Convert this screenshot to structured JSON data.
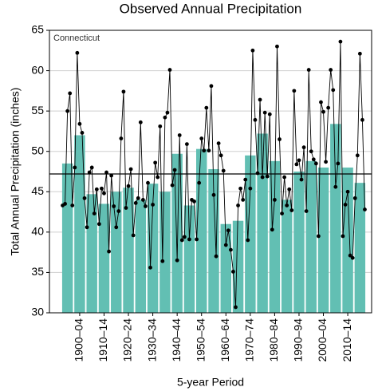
{
  "chart_data": {
    "type": "bar",
    "title": "Observed Annual Precipitation",
    "annotation": "Connecticut",
    "xlabel": "5-year Period",
    "ylabel": "Total Annual Precipitation (inches)",
    "categories": [
      null,
      "1900–04",
      null,
      "1910–14",
      null,
      "1920–24",
      null,
      "1930–34",
      null,
      "1940–44",
      null,
      "1950–54",
      null,
      "1960–64",
      null,
      "1970–74",
      null,
      "1980–84",
      null,
      "1990–94",
      null,
      "2000–04",
      null,
      "2010–14",
      null
    ],
    "series": [
      {
        "color": "#62bfb3",
        "values": [
          48.5,
          52,
          44.7,
          43.5,
          45,
          45.5,
          44,
          46,
          45,
          49.7,
          43.3,
          50.3,
          47.8,
          41,
          41.4,
          49.5,
          52.2,
          48.8,
          44,
          47.5,
          48.8,
          48,
          53.4,
          48,
          46.1
        ]
      }
    ],
    "annual": {
      "color": "#000000",
      "x": [
        1895,
        1896,
        1897,
        1898,
        1899,
        1900,
        1901,
        1902,
        1903,
        1904,
        1905,
        1906,
        1907,
        1908,
        1909,
        1910,
        1911,
        1912,
        1913,
        1914,
        1915,
        1916,
        1917,
        1918,
        1919,
        1920,
        1921,
        1922,
        1923,
        1924,
        1925,
        1926,
        1927,
        1928,
        1929,
        1930,
        1931,
        1932,
        1933,
        1934,
        1935,
        1936,
        1937,
        1938,
        1939,
        1940,
        1941,
        1942,
        1943,
        1944,
        1945,
        1946,
        1947,
        1948,
        1949,
        1950,
        1951,
        1952,
        1953,
        1954,
        1955,
        1956,
        1957,
        1958,
        1959,
        1960,
        1961,
        1962,
        1963,
        1964,
        1965,
        1966,
        1967,
        1968,
        1969,
        1970,
        1971,
        1972,
        1973,
        1974,
        1975,
        1976,
        1977,
        1978,
        1979,
        1980,
        1981,
        1982,
        1983,
        1984,
        1985,
        1986,
        1987,
        1988,
        1989,
        1990,
        1991,
        1992,
        1993,
        1994,
        1995,
        1996,
        1997,
        1998,
        1999,
        2000,
        2001,
        2002,
        2003,
        2004,
        2005,
        2006,
        2007,
        2008,
        2009,
        2010,
        2011,
        2012,
        2013,
        2014,
        2015,
        2016,
        2017,
        2018,
        2019
      ],
      "values": [
        43.3,
        43.5,
        55,
        57.2,
        43.3,
        48,
        62.2,
        53.4,
        52.3,
        44.2,
        40.6,
        47.4,
        48,
        42.3,
        45.3,
        41,
        45.4,
        44.8,
        47.4,
        37.6,
        47,
        43.2,
        40.6,
        42.6,
        51.6,
        57.4,
        43,
        45.7,
        47.8,
        39.6,
        43.6,
        44.2,
        53.6,
        44,
        43.2,
        46.1,
        35.6,
        43.4,
        48.6,
        46.8,
        53.1,
        36.4,
        54.2,
        54.8,
        60.1,
        45.8,
        47.7,
        36.5,
        52,
        39,
        39.4,
        50.9,
        39.1,
        44,
        43.8,
        39.1,
        46.1,
        51.6,
        50.1,
        55.4,
        50.1,
        58.1,
        44.6,
        37,
        51,
        49.5,
        47.6,
        38.4,
        40.2,
        37.8,
        35.1,
        30.7,
        43.3,
        45.4,
        44,
        46.5,
        39,
        45.4,
        62.5,
        53.9,
        47.3,
        56.4,
        46.8,
        54.8,
        46.9,
        54.6,
        40.3,
        44,
        63,
        51.5,
        42.3,
        46.8,
        43.3,
        45.3,
        42.7,
        57.5,
        48.4,
        48.9,
        46.5,
        50.5,
        42.6,
        60.1,
        50,
        49,
        48.5,
        39.5,
        56.1,
        54.9,
        48.7,
        55.4,
        60.1,
        57.6,
        45.6,
        48.5,
        63.6,
        39.5,
        43.4,
        45,
        37.1,
        36.8,
        44.2,
        49.5,
        62.1,
        53.9,
        42.8
      ]
    },
    "reference_line": 47.2,
    "ylim": [
      30,
      65
    ],
    "yticks": [
      30,
      35,
      40,
      45,
      50,
      55,
      60,
      65
    ],
    "grid": true
  }
}
